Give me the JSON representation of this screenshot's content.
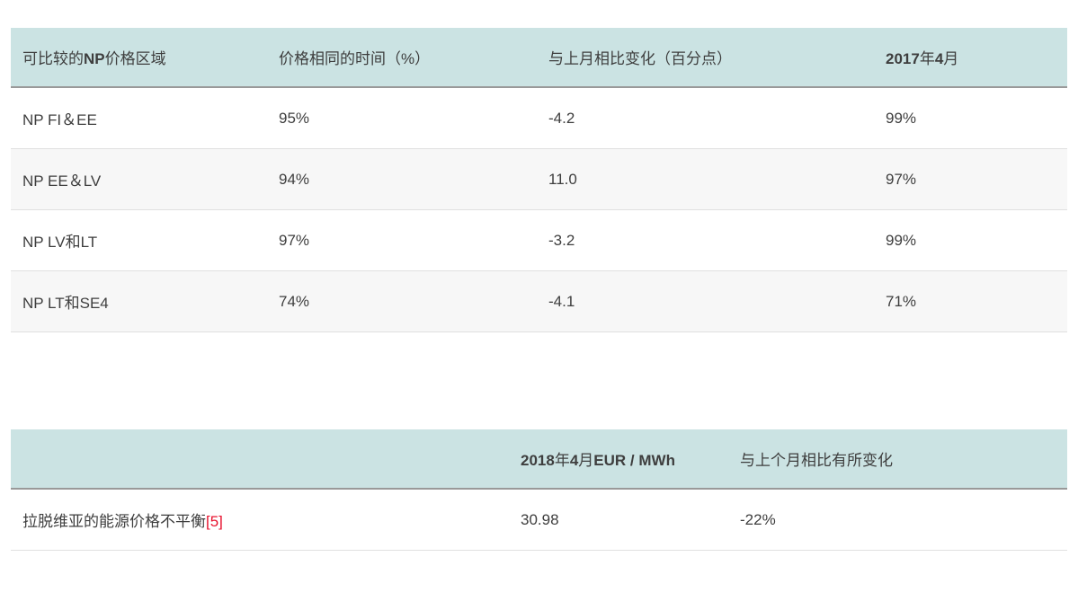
{
  "colors": {
    "header_bg": "#cbe3e3",
    "alt_row_bg": "#f7f7f7",
    "text": "#3e3e3e",
    "header_border": "#999999",
    "row_border": "#e0e0e0",
    "footnote_red": "#e8112d"
  },
  "table1": {
    "headers": {
      "area": [
        {
          "t": "可比较的"
        },
        {
          "t": "NP",
          "b": true
        },
        {
          "t": "价格区域"
        }
      ],
      "same_time": [
        {
          "t": "价格相同的时间（%）"
        }
      ],
      "change": [
        {
          "t": "与上月相比变化（百分点）"
        }
      ],
      "month": [
        {
          "t": "2017",
          "b": true
        },
        {
          "t": "年"
        },
        {
          "t": "4",
          "b": true
        },
        {
          "t": "月"
        }
      ]
    },
    "rows": [
      {
        "area": "NP FI＆EE",
        "same_time": "95%",
        "change": "-4.2",
        "month_value": "99%"
      },
      {
        "area": "NP EE＆LV",
        "same_time": "94%",
        "change": "11.0",
        "month_value": "97%"
      },
      {
        "area": "NP LV和LT",
        "same_time": "97%",
        "change": "-3.2",
        "month_value": "99%"
      },
      {
        "area": "NP LT和SE4",
        "same_time": "74%",
        "change": "-4.1",
        "month_value": "71%"
      }
    ]
  },
  "table2": {
    "headers": {
      "label": [
        {
          "t": ""
        }
      ],
      "price": [
        {
          "t": "2018",
          "b": true
        },
        {
          "t": "年"
        },
        {
          "t": "4",
          "b": true
        },
        {
          "t": "月"
        },
        {
          "t": "EUR / MWh",
          "b": true
        }
      ],
      "change": [
        {
          "t": "与上个月相比有所变化"
        }
      ]
    },
    "rows": [
      {
        "label": "拉脱维亚的能源价格不平衡",
        "footnote": "[5]",
        "price": "30.98",
        "change": "-22%"
      }
    ]
  }
}
